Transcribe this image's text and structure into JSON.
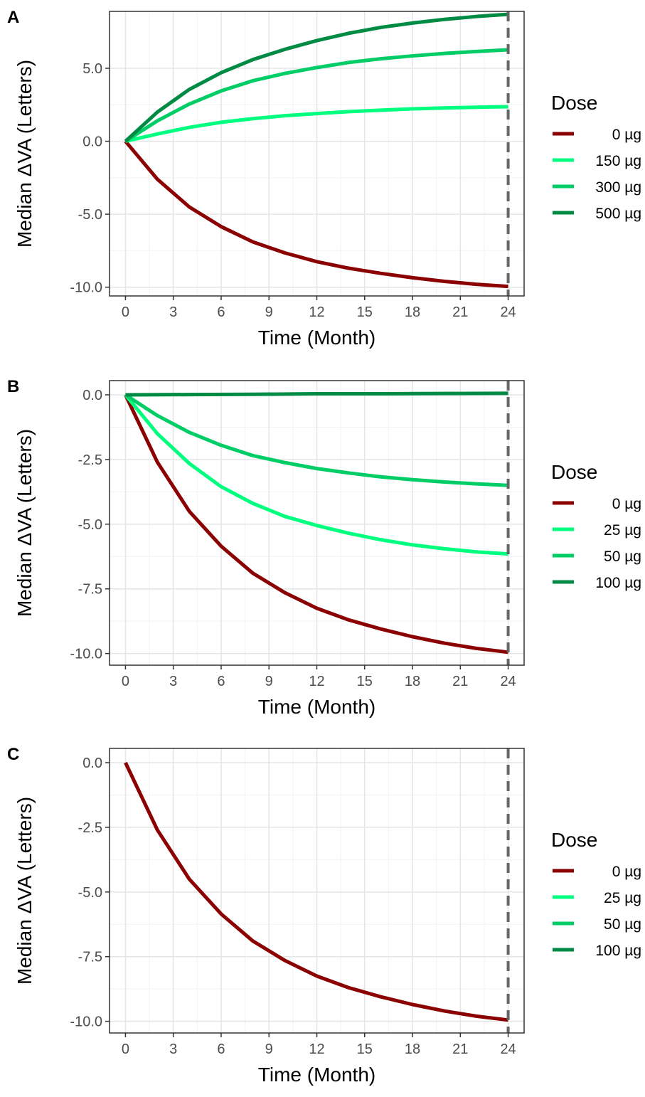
{
  "chart_data": [
    {
      "type": "line",
      "panel_label": "A",
      "xlabel": "Time (Month)",
      "ylabel": "Median ΔVA (Letters)",
      "xlim": [
        -1,
        25
      ],
      "ylim": [
        -10.6,
        8.9
      ],
      "x_ticks": [
        0,
        3,
        6,
        9,
        12,
        15,
        18,
        21,
        24
      ],
      "y_ticks": [
        5.0,
        0.0,
        -5.0,
        -10.0
      ],
      "y_tick_labels": [
        "5.0",
        "0.0",
        "-5.0",
        "-10.0"
      ],
      "grid": true,
      "reference_line": {
        "x": 24,
        "style": "dashed",
        "color": "#666666"
      },
      "legend": {
        "title": "Dose",
        "position": "right"
      },
      "series": [
        {
          "name": "0 µg",
          "color": "#8b0000",
          "points": [
            [
              0,
              0
            ],
            [
              2,
              -2.6
            ],
            [
              4,
              -4.5
            ],
            [
              6,
              -5.85
            ],
            [
              8,
              -6.9
            ],
            [
              10,
              -7.65
            ],
            [
              12,
              -8.25
            ],
            [
              14,
              -8.7
            ],
            [
              16,
              -9.05
            ],
            [
              18,
              -9.35
            ],
            [
              20,
              -9.6
            ],
            [
              22,
              -9.8
            ],
            [
              24,
              -9.95
            ]
          ]
        },
        {
          "name": "150 µg",
          "color": "#00ff7f",
          "points": [
            [
              0,
              0
            ],
            [
              2,
              0.5
            ],
            [
              4,
              0.95
            ],
            [
              6,
              1.3
            ],
            [
              8,
              1.55
            ],
            [
              10,
              1.75
            ],
            [
              12,
              1.9
            ],
            [
              14,
              2.03
            ],
            [
              16,
              2.13
            ],
            [
              18,
              2.22
            ],
            [
              20,
              2.28
            ],
            [
              22,
              2.33
            ],
            [
              24,
              2.37
            ]
          ]
        },
        {
          "name": "300 µg",
          "color": "#00cd66",
          "points": [
            [
              0,
              0
            ],
            [
              2,
              1.4
            ],
            [
              4,
              2.55
            ],
            [
              6,
              3.45
            ],
            [
              8,
              4.15
            ],
            [
              10,
              4.65
            ],
            [
              12,
              5.05
            ],
            [
              14,
              5.4
            ],
            [
              16,
              5.65
            ],
            [
              18,
              5.85
            ],
            [
              20,
              6.02
            ],
            [
              22,
              6.15
            ],
            [
              24,
              6.27
            ]
          ]
        },
        {
          "name": "500 µg",
          "color": "#008b45",
          "points": [
            [
              0,
              0
            ],
            [
              2,
              2.0
            ],
            [
              4,
              3.55
            ],
            [
              6,
              4.7
            ],
            [
              8,
              5.6
            ],
            [
              10,
              6.3
            ],
            [
              12,
              6.9
            ],
            [
              14,
              7.4
            ],
            [
              16,
              7.8
            ],
            [
              18,
              8.1
            ],
            [
              20,
              8.35
            ],
            [
              22,
              8.55
            ],
            [
              24,
              8.7
            ]
          ]
        }
      ]
    },
    {
      "type": "line",
      "panel_label": "B",
      "xlabel": "Time (Month)",
      "ylabel": "Median ΔVA (Letters)",
      "xlim": [
        -1,
        25
      ],
      "ylim": [
        -10.45,
        0.55
      ],
      "x_ticks": [
        0,
        3,
        6,
        9,
        12,
        15,
        18,
        21,
        24
      ],
      "y_ticks": [
        0.0,
        -2.5,
        -5.0,
        -7.5,
        -10.0
      ],
      "y_tick_labels": [
        "0.0",
        "-2.5",
        "-5.0",
        "-7.5",
        "-10.0"
      ],
      "grid": true,
      "reference_line": {
        "x": 24,
        "style": "dashed",
        "color": "#666666"
      },
      "legend": {
        "title": "Dose",
        "position": "right"
      },
      "series": [
        {
          "name": "0 µg",
          "color": "#8b0000",
          "points": [
            [
              0,
              0
            ],
            [
              2,
              -2.6
            ],
            [
              4,
              -4.5
            ],
            [
              6,
              -5.85
            ],
            [
              8,
              -6.9
            ],
            [
              10,
              -7.65
            ],
            [
              12,
              -8.25
            ],
            [
              14,
              -8.7
            ],
            [
              16,
              -9.05
            ],
            [
              18,
              -9.35
            ],
            [
              20,
              -9.6
            ],
            [
              22,
              -9.8
            ],
            [
              24,
              -9.95
            ]
          ]
        },
        {
          "name": "25 µg",
          "color": "#00ff7f",
          "points": [
            [
              0,
              0
            ],
            [
              2,
              -1.5
            ],
            [
              4,
              -2.65
            ],
            [
              6,
              -3.55
            ],
            [
              8,
              -4.2
            ],
            [
              10,
              -4.7
            ],
            [
              12,
              -5.05
            ],
            [
              14,
              -5.35
            ],
            [
              16,
              -5.6
            ],
            [
              18,
              -5.8
            ],
            [
              20,
              -5.95
            ],
            [
              22,
              -6.07
            ],
            [
              24,
              -6.15
            ]
          ]
        },
        {
          "name": "50 µg",
          "color": "#00cd66",
          "points": [
            [
              0,
              0
            ],
            [
              2,
              -0.8
            ],
            [
              4,
              -1.45
            ],
            [
              6,
              -1.95
            ],
            [
              8,
              -2.35
            ],
            [
              10,
              -2.62
            ],
            [
              12,
              -2.85
            ],
            [
              14,
              -3.02
            ],
            [
              16,
              -3.17
            ],
            [
              18,
              -3.28
            ],
            [
              20,
              -3.37
            ],
            [
              22,
              -3.44
            ],
            [
              24,
              -3.5
            ]
          ]
        },
        {
          "name": "100 µg",
          "color": "#008b45",
          "points": [
            [
              0,
              0
            ],
            [
              4,
              0.01
            ],
            [
              8,
              0.02
            ],
            [
              12,
              0.04
            ],
            [
              16,
              0.04
            ],
            [
              20,
              0.05
            ],
            [
              24,
              0.06
            ]
          ]
        }
      ]
    },
    {
      "type": "line",
      "panel_label": "C",
      "xlabel": "Time (Month)",
      "ylabel": "Median ΔVA (Letters)",
      "xlim": [
        -1,
        25
      ],
      "ylim": [
        -10.45,
        0.55
      ],
      "x_ticks": [
        0,
        3,
        6,
        9,
        12,
        15,
        18,
        21,
        24
      ],
      "y_ticks": [
        0.0,
        -2.5,
        -5.0,
        -7.5,
        -10.0
      ],
      "y_tick_labels": [
        "0.0",
        "-2.5",
        "-5.0",
        "-7.5",
        "-10.0"
      ],
      "grid": true,
      "reference_line": {
        "x": 24,
        "style": "dashed",
        "color": "#666666"
      },
      "legend": {
        "title": "Dose",
        "position": "right"
      },
      "series": [
        {
          "name": "0 µg",
          "color": "#8b0000",
          "points": [
            [
              0,
              0
            ],
            [
              2,
              -2.6
            ],
            [
              4,
              -4.5
            ],
            [
              6,
              -5.85
            ],
            [
              8,
              -6.9
            ],
            [
              10,
              -7.65
            ],
            [
              12,
              -8.25
            ],
            [
              14,
              -8.7
            ],
            [
              16,
              -9.05
            ],
            [
              18,
              -9.35
            ],
            [
              20,
              -9.6
            ],
            [
              22,
              -9.8
            ],
            [
              24,
              -9.95
            ]
          ]
        },
        {
          "name": "25 µg",
          "color": "#00ff7f",
          "points": []
        },
        {
          "name": "50 µg",
          "color": "#00cd66",
          "points": []
        },
        {
          "name": "100 µg",
          "color": "#008b45",
          "points": []
        }
      ]
    }
  ]
}
